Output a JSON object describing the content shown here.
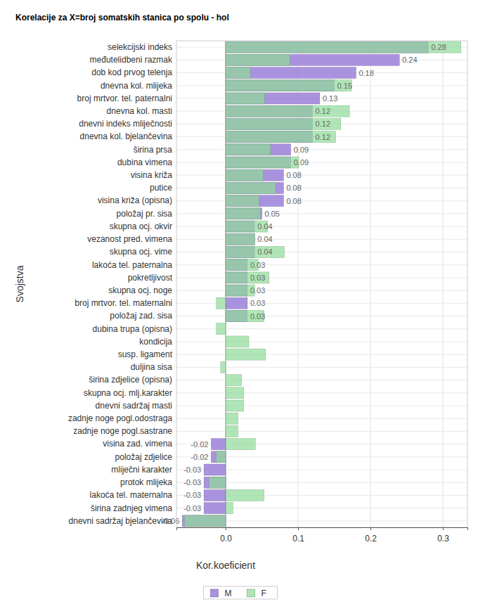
{
  "chart_data": {
    "type": "bar",
    "orientation": "horizontal",
    "title": "Korelacije za X=broj somatskih stanica po spolu - hol",
    "x_label": "Kor.koeficient",
    "y_label": "Svojstva",
    "grid": true,
    "legend": "bottom",
    "categories": [
      "selekcijski indeks",
      "međutelidbeni razmak",
      "dob kod prvog telenja",
      "dnevna kol. mlijeka",
      "broj mrtvor. tel. paternalni",
      "dnevna kol. masti",
      "dnevni indeks mliječnosti",
      "dnevna kol. bjelančevina",
      "širina prsa",
      "dubina vimena",
      "visina križa",
      "putice",
      "visina križa (opisna)",
      "položaj pr. sisa",
      "skupna ocj. okvir",
      "vezanost pred. vimena",
      "skupna ocj. vime",
      "lakoća tel. paternalna",
      "pokretljivost",
      "skupna ocj. noge",
      "broj mrtvor. tel. maternalni",
      "položaj zad. sisa",
      "dubina trupa (opisna)",
      "kondicija",
      "susp. ligament",
      "duljina sisa",
      "širina zdjelice (opisna)",
      "skupna ocj. mlj.karakter",
      "dnevni sadržaj masti",
      "zadnje noge pogl.odostraga",
      "zadnje noge pogl.sastrane",
      "visina zad. vimena",
      "položaj zdjelice",
      "mliječni karakter",
      "protok mlijeka",
      "lakoća tel. maternalna",
      "širina zadnjeg vimena",
      "dnevni sadržaj bjelančevina"
    ],
    "series": [
      {
        "name": "M",
        "color": "#9b80d8",
        "data_labels": true,
        "values": [
          0.28,
          0.24,
          0.18,
          0.15,
          0.13,
          0.12,
          0.12,
          0.12,
          0.09,
          0.09,
          0.08,
          0.08,
          0.08,
          0.05,
          0.04,
          0.04,
          0.04,
          0.03,
          0.03,
          0.03,
          0.03,
          0.03,
          null,
          null,
          null,
          null,
          null,
          null,
          null,
          null,
          null,
          -0.02,
          -0.02,
          -0.03,
          -0.03,
          -0.03,
          -0.03,
          -0.06
        ]
      },
      {
        "name": "F",
        "color": "#8edc98",
        "values": [
          0.325,
          0.089,
          0.034,
          0.174,
          0.054,
          0.171,
          0.159,
          0.152,
          0.062,
          0.101,
          0.052,
          0.069,
          0.046,
          0.048,
          0.058,
          0.04,
          0.081,
          0.045,
          0.06,
          0.04,
          -0.013,
          0.053,
          -0.013,
          0.032,
          0.055,
          -0.007,
          0.022,
          0.025,
          0.025,
          0.017,
          0.017,
          0.041,
          -0.013,
          null,
          -0.023,
          0.053,
          0.01,
          -0.057
        ]
      }
    ],
    "xlim": [
      -0.068,
      0.334
    ],
    "xticks": [
      {
        "value": 0,
        "label": "0.0"
      },
      0.1,
      0.2,
      0.3
    ]
  }
}
